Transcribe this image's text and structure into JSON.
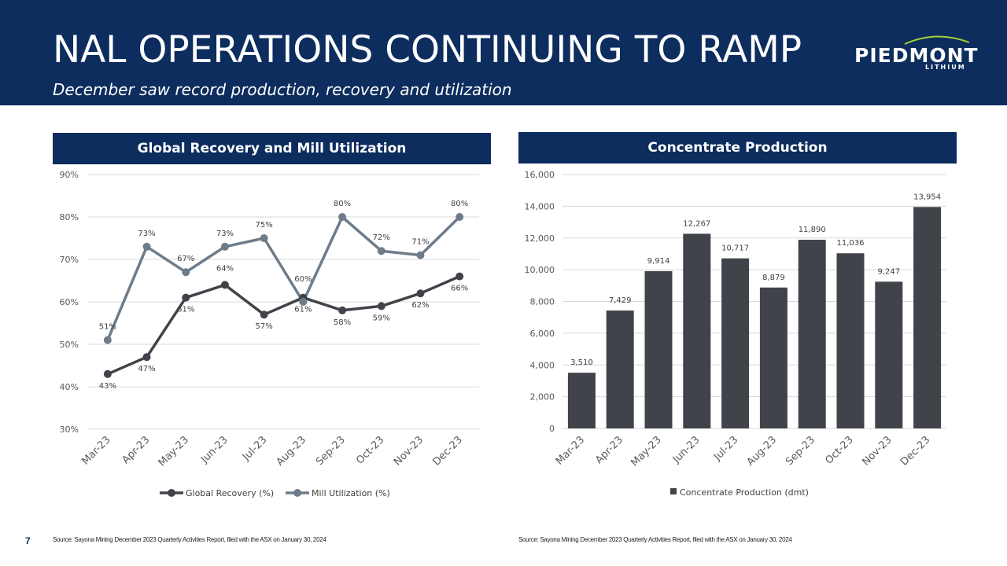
{
  "header": {
    "title": "NAL OPERATIONS CONTINUING TO RAMP",
    "subtitle": "December saw record production, recovery and utilization"
  },
  "logo": {
    "name": "PIEDMONT",
    "sub": "LITHIUM"
  },
  "colors": {
    "navy": "#0d2d5e",
    "dark_series": "#404349",
    "light_series": "#6e7c8a",
    "grid": "#d9d9d9",
    "logo_arc": "#a6ce39"
  },
  "page_number": "7",
  "sources": {
    "left": "Source: Sayona Mining December 2023 Quarterly Activities Report, filed with the ASX on January 30, 2024",
    "right": "Source: Sayona Mining December 2023 Quarterly Activities Report, filed with the ASX on January 30, 2024"
  },
  "chart_data": [
    {
      "type": "line",
      "title": "Global Recovery and Mill Utilization",
      "categories": [
        "Mar-23",
        "Apr-23",
        "May-23",
        "Jun-23",
        "Jul-23",
        "Aug-23",
        "Sep-23",
        "Oct-23",
        "Nov-23",
        "Dec-23"
      ],
      "ylim": [
        30,
        90
      ],
      "yticks": [
        30,
        40,
        50,
        60,
        70,
        80,
        90
      ],
      "ytick_labels": [
        "30%",
        "40%",
        "50%",
        "60%",
        "70%",
        "80%",
        "90%"
      ],
      "series": [
        {
          "name": "Global Recovery (%)",
          "values": [
            43,
            47,
            61,
            64,
            57,
            61,
            58,
            59,
            62,
            66
          ],
          "labels": [
            "43%",
            "47%",
            "61%",
            "64%",
            "57%",
            "61%",
            "58%",
            "59%",
            "62%",
            "66%"
          ]
        },
        {
          "name": "Mill Utilization (%)",
          "values": [
            51,
            73,
            67,
            73,
            75,
            60,
            80,
            72,
            71,
            80
          ],
          "labels": [
            "51%",
            "73%",
            "67%",
            "73%",
            "75%",
            "60%",
            "80%",
            "72%",
            "71%",
            "80%"
          ]
        }
      ],
      "legend": "bottom"
    },
    {
      "type": "bar",
      "title": "Concentrate Production",
      "categories": [
        "Mar-23",
        "Apr-23",
        "May-23",
        "Jun-23",
        "Jul-23",
        "Aug-23",
        "Sep-23",
        "Oct-23",
        "Nov-23",
        "Dec-23"
      ],
      "ylim": [
        0,
        16000
      ],
      "yticks": [
        0,
        2000,
        4000,
        6000,
        8000,
        10000,
        12000,
        14000,
        16000
      ],
      "ytick_labels": [
        "0",
        "2,000",
        "4,000",
        "6,000",
        "8,000",
        "10,000",
        "12,000",
        "14,000",
        "16,000"
      ],
      "series": [
        {
          "name": "Concentrate Production (dmt)",
          "values": [
            3510,
            7429,
            9914,
            12267,
            10717,
            8879,
            11890,
            11036,
            9247,
            13954
          ],
          "labels": [
            "3,510",
            "7,429",
            "9,914",
            "12,267",
            "10,717",
            "8,879",
            "11,890",
            "11,036",
            "9,247",
            "13,954"
          ]
        }
      ],
      "legend": "bottom"
    }
  ]
}
